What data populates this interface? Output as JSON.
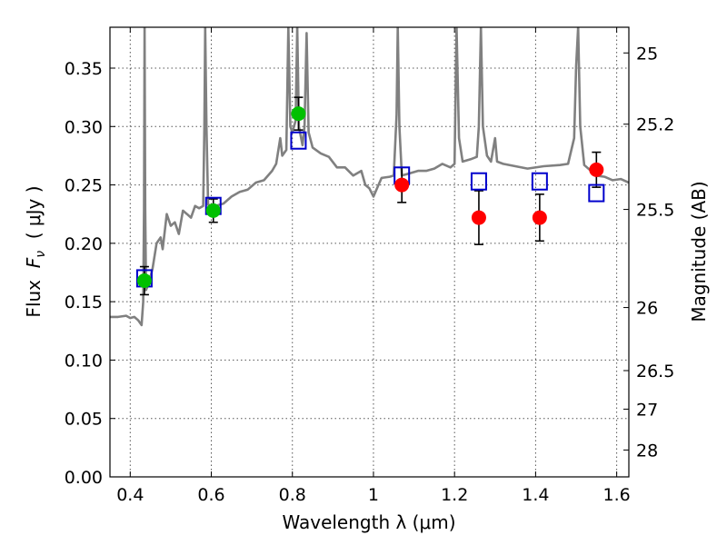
{
  "chart_data": {
    "type": "scatter",
    "xlabel": "Wavelength  λ (μm)",
    "ylabel": "Flux  Fν  ( μJy )",
    "ylabel_parts": {
      "prefix": "Flux  ",
      "symbol": "F",
      "subscript": "ν",
      "suffix": "  ( μJy )"
    },
    "y2label": "Magnitude (AB)",
    "xlim": [
      0.35,
      1.63
    ],
    "ylim": [
      0.0,
      0.385
    ],
    "grid": true,
    "x_ticks": [
      0.4,
      0.6,
      0.8,
      1.0,
      1.2,
      1.4,
      1.6
    ],
    "x_tick_labels": [
      "0.4",
      "0.6",
      "0.8",
      "1",
      "1.2",
      "1.4",
      "1.6"
    ],
    "y_ticks": [
      0.0,
      0.05,
      0.1,
      0.15,
      0.2,
      0.25,
      0.3,
      0.35
    ],
    "y_tick_labels": [
      "0.00",
      "0.05",
      "0.10",
      "0.15",
      "0.20",
      "0.25",
      "0.30",
      "0.35"
    ],
    "y2_ticks": [
      {
        "label": "25",
        "flux": 0.363
      },
      {
        "label": "25.2",
        "flux": 0.302
      },
      {
        "label": "25.5",
        "flux": 0.229
      },
      {
        "label": "26",
        "flux": 0.145
      },
      {
        "label": "26.5",
        "flux": 0.091
      },
      {
        "label": "27",
        "flux": 0.058
      },
      {
        "label": "28",
        "flux": 0.023
      }
    ],
    "series": [
      {
        "kind": "spectrum",
        "color": "#808080",
        "points": [
          [
            0.35,
            0.137
          ],
          [
            0.37,
            0.137
          ],
          [
            0.39,
            0.138
          ],
          [
            0.4,
            0.136
          ],
          [
            0.41,
            0.137
          ],
          [
            0.42,
            0.134
          ],
          [
            0.428,
            0.13
          ],
          [
            0.432,
            0.15
          ],
          [
            0.434,
            0.23
          ],
          [
            0.4355,
            0.385
          ],
          [
            0.437,
            0.23
          ],
          [
            0.439,
            0.16
          ],
          [
            0.445,
            0.165
          ],
          [
            0.455,
            0.178
          ],
          [
            0.465,
            0.2
          ],
          [
            0.475,
            0.205
          ],
          [
            0.48,
            0.195
          ],
          [
            0.49,
            0.225
          ],
          [
            0.5,
            0.215
          ],
          [
            0.51,
            0.218
          ],
          [
            0.52,
            0.208
          ],
          [
            0.53,
            0.228
          ],
          [
            0.54,
            0.225
          ],
          [
            0.55,
            0.222
          ],
          [
            0.56,
            0.232
          ],
          [
            0.57,
            0.23
          ],
          [
            0.58,
            0.232
          ],
          [
            0.583,
            0.3
          ],
          [
            0.585,
            0.385
          ],
          [
            0.588,
            0.3
          ],
          [
            0.592,
            0.233
          ],
          [
            0.61,
            0.232
          ],
          [
            0.63,
            0.234
          ],
          [
            0.65,
            0.24
          ],
          [
            0.67,
            0.244
          ],
          [
            0.69,
            0.246
          ],
          [
            0.71,
            0.252
          ],
          [
            0.73,
            0.254
          ],
          [
            0.75,
            0.262
          ],
          [
            0.76,
            0.268
          ],
          [
            0.77,
            0.29
          ],
          [
            0.775,
            0.275
          ],
          [
            0.785,
            0.28
          ],
          [
            0.79,
            0.385
          ],
          [
            0.795,
            0.3
          ],
          [
            0.8,
            0.295
          ],
          [
            0.808,
            0.305
          ],
          [
            0.812,
            0.385
          ],
          [
            0.816,
            0.3
          ],
          [
            0.825,
            0.284
          ],
          [
            0.83,
            0.3
          ],
          [
            0.835,
            0.38
          ],
          [
            0.84,
            0.295
          ],
          [
            0.85,
            0.282
          ],
          [
            0.87,
            0.277
          ],
          [
            0.89,
            0.274
          ],
          [
            0.91,
            0.265
          ],
          [
            0.93,
            0.265
          ],
          [
            0.95,
            0.258
          ],
          [
            0.97,
            0.262
          ],
          [
            0.98,
            0.25
          ],
          [
            0.99,
            0.247
          ],
          [
            1.0,
            0.24
          ],
          [
            1.01,
            0.248
          ],
          [
            1.02,
            0.256
          ],
          [
            1.04,
            0.257
          ],
          [
            1.05,
            0.258
          ],
          [
            1.057,
            0.31
          ],
          [
            1.06,
            0.385
          ],
          [
            1.064,
            0.3
          ],
          [
            1.07,
            0.258
          ],
          [
            1.09,
            0.26
          ],
          [
            1.11,
            0.262
          ],
          [
            1.13,
            0.262
          ],
          [
            1.15,
            0.264
          ],
          [
            1.17,
            0.268
          ],
          [
            1.19,
            0.265
          ],
          [
            1.2,
            0.268
          ],
          [
            1.205,
            0.385
          ],
          [
            1.211,
            0.29
          ],
          [
            1.22,
            0.27
          ],
          [
            1.24,
            0.272
          ],
          [
            1.255,
            0.274
          ],
          [
            1.26,
            0.3
          ],
          [
            1.265,
            0.385
          ],
          [
            1.27,
            0.3
          ],
          [
            1.28,
            0.275
          ],
          [
            1.29,
            0.27
          ],
          [
            1.3,
            0.29
          ],
          [
            1.305,
            0.27
          ],
          [
            1.32,
            0.268
          ],
          [
            1.35,
            0.266
          ],
          [
            1.38,
            0.264
          ],
          [
            1.42,
            0.266
          ],
          [
            1.46,
            0.267
          ],
          [
            1.48,
            0.268
          ],
          [
            1.495,
            0.29
          ],
          [
            1.5,
            0.352
          ],
          [
            1.505,
            0.385
          ],
          [
            1.51,
            0.3
          ],
          [
            1.52,
            0.267
          ],
          [
            1.55,
            0.258
          ],
          [
            1.57,
            0.257
          ],
          [
            1.59,
            0.254
          ],
          [
            1.61,
            0.255
          ],
          [
            1.63,
            0.252
          ]
        ]
      },
      {
        "kind": "model-photometry",
        "marker": "open-square",
        "color": "#0000cc",
        "points": [
          [
            0.435,
            0.17
          ],
          [
            0.605,
            0.232
          ],
          [
            0.815,
            0.288
          ],
          [
            1.07,
            0.258
          ],
          [
            1.26,
            0.253
          ],
          [
            1.41,
            0.253
          ],
          [
            1.55,
            0.243
          ]
        ]
      },
      {
        "kind": "observed-optical",
        "marker": "filled-circle",
        "color": "#00c000",
        "points": [
          {
            "x": 0.435,
            "y": 0.168,
            "err": 0.012
          },
          {
            "x": 0.605,
            "y": 0.228,
            "err": 0.01
          },
          {
            "x": 0.815,
            "y": 0.311,
            "err": 0.014
          }
        ]
      },
      {
        "kind": "observed-infrared",
        "marker": "filled-circle",
        "color": "#ff0000",
        "points": [
          {
            "x": 1.07,
            "y": 0.25,
            "err": 0.015
          },
          {
            "x": 1.26,
            "y": 0.222,
            "err": 0.023
          },
          {
            "x": 1.41,
            "y": 0.222,
            "err": 0.02
          },
          {
            "x": 1.55,
            "y": 0.263,
            "err": 0.015
          }
        ]
      }
    ]
  }
}
